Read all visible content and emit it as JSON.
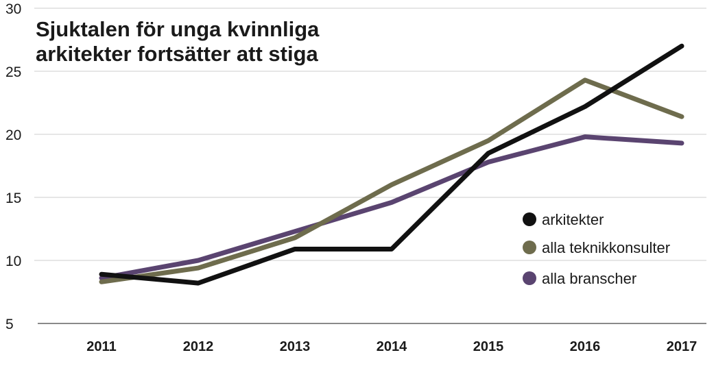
{
  "chart_data": {
    "type": "line",
    "title_lines": [
      "Sjuktalen för unga kvinnliga",
      "arkitekter fortsätter att stiga"
    ],
    "categories": [
      "2011",
      "2012",
      "2013",
      "2014",
      "2015",
      "2016",
      "2017"
    ],
    "series": [
      {
        "name": "alla branscher",
        "color": "#5a4470",
        "values": [
          8.6,
          10.0,
          12.3,
          14.6,
          17.8,
          19.8,
          19.3
        ]
      },
      {
        "name": "alla teknikkonsulter",
        "color": "#6e6c4d",
        "values": [
          8.3,
          9.4,
          11.8,
          16.0,
          19.5,
          24.3,
          21.4
        ]
      },
      {
        "name": "arkitekter",
        "color": "#111111",
        "values": [
          8.9,
          8.2,
          10.9,
          10.9,
          18.5,
          22.2,
          27.0
        ]
      }
    ],
    "legend_order": [
      "arkitekter",
      "alla teknikkonsulter",
      "alla branscher"
    ],
    "yticks": [
      "5",
      "10",
      "15",
      "20",
      "25",
      "30"
    ],
    "ylim": [
      5,
      30
    ],
    "grid": true,
    "legend_position": "right"
  }
}
